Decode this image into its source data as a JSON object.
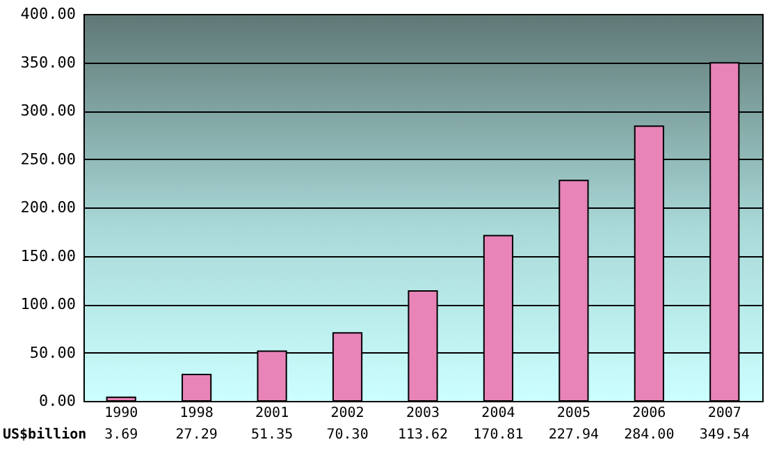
{
  "chart_data": {
    "type": "bar",
    "categories": [
      "1990",
      "1998",
      "2001",
      "2002",
      "2003",
      "2004",
      "2005",
      "2006",
      "2007"
    ],
    "series": [
      {
        "color": "#e884b8",
        "values": [
          3.69,
          27.29,
          51.35,
          70.3,
          113.62,
          170.81,
          227.94,
          284.0,
          349.54
        ],
        "value_labels": [
          "3.69",
          "27.29",
          "51.35",
          "70.30",
          "113.62",
          "170.81",
          "227.94",
          "284.00",
          "349.54"
        ]
      }
    ],
    "ylim": [
      0,
      400
    ],
    "yticks": [
      {
        "value": 0,
        "label": "0.00"
      },
      {
        "value": 50,
        "label": "50.00"
      },
      {
        "value": 100,
        "label": "100.00"
      },
      {
        "value": 150,
        "label": "150.00"
      },
      {
        "value": 200,
        "label": "200.00"
      },
      {
        "value": 250,
        "label": "250.00"
      },
      {
        "value": 300,
        "label": "300.00"
      },
      {
        "value": 350,
        "label": "350.00"
      },
      {
        "value": 400,
        "label": "400.00"
      }
    ],
    "grid": "y",
    "annotations": [
      "US$billion"
    ]
  }
}
